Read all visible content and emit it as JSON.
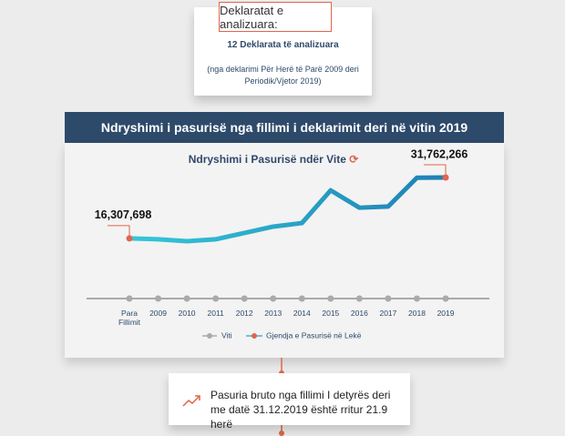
{
  "header": {
    "title": "Deklaratat e analizuara:",
    "subtitle": "12 Deklarata të analizuara",
    "note": "(nga deklarimi Për Herë të Parë 2009 deri Periodik/Vjetor 2019)"
  },
  "chart_data": {
    "type": "line",
    "title": "Ndryshimi i pasurisë nga fillimi i deklarimit deri në vitin 2019",
    "subtitle": "Ndryshimi i Pasurisë ndër Vite",
    "x_label": "Viti",
    "categories": [
      "Para Fillimit",
      "2009",
      "2010",
      "2011",
      "2012",
      "2013",
      "2014",
      "2015",
      "2016",
      "2017",
      "2018",
      "2019"
    ],
    "series": [
      {
        "name": "Gjendja e Pasurisë në Lekë",
        "color": "#1f7fb5",
        "marker_color": "#e0654b",
        "values": [
          16307698,
          16080000,
          15600000,
          16080000,
          17700000,
          19300000,
          20200000,
          28500000,
          24100000,
          24400000,
          31700000,
          31762266
        ],
        "value_labels": [
          "16,307,698",
          null,
          null,
          null,
          null,
          null,
          null,
          null,
          null,
          null,
          null,
          "31,762,266"
        ]
      }
    ]
  },
  "summary": {
    "text": "Pasuria bruto nga fillimi I detyrës deri me datë 31.12.2019 është rritur 21.9 herë"
  }
}
